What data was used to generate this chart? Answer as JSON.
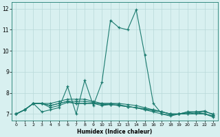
{
  "x": [
    0,
    1,
    2,
    3,
    4,
    5,
    6,
    7,
    8,
    9,
    10,
    11,
    12,
    13,
    14,
    15,
    16,
    17,
    18,
    19,
    20,
    21,
    22,
    23
  ],
  "line1": [
    7.0,
    7.2,
    7.5,
    7.1,
    7.2,
    7.3,
    8.3,
    7.0,
    8.6,
    7.4,
    8.5,
    11.45,
    11.1,
    11.0,
    11.95,
    9.8,
    7.5,
    7.0,
    6.9,
    7.0,
    7.1,
    7.1,
    7.0,
    6.85
  ],
  "line2": [
    7.0,
    7.2,
    7.5,
    7.5,
    7.3,
    7.4,
    7.55,
    7.5,
    7.5,
    7.5,
    7.4,
    7.45,
    7.4,
    7.35,
    7.3,
    7.2,
    7.1,
    7.0,
    6.95,
    7.0,
    7.1,
    7.1,
    7.15,
    6.95
  ],
  "line3": [
    7.0,
    7.2,
    7.5,
    7.5,
    7.4,
    7.5,
    7.6,
    7.5,
    7.5,
    7.5,
    7.5,
    7.5,
    7.5,
    7.45,
    7.4,
    7.3,
    7.2,
    7.1,
    7.0,
    7.0,
    7.05,
    7.1,
    7.1,
    7.0
  ],
  "line4": [
    7.0,
    7.2,
    7.5,
    7.5,
    7.4,
    7.5,
    7.6,
    7.6,
    7.6,
    7.55,
    7.45,
    7.45,
    7.4,
    7.35,
    7.3,
    7.25,
    7.15,
    7.1,
    7.0,
    7.0,
    7.0,
    7.05,
    7.0,
    6.9
  ],
  "line5": [
    7.0,
    7.2,
    7.5,
    7.5,
    7.5,
    7.6,
    7.7,
    7.7,
    7.7,
    7.6,
    7.5,
    7.5,
    7.45,
    7.35,
    7.3,
    7.2,
    7.2,
    7.1,
    7.0,
    7.0,
    7.0,
    7.0,
    7.0,
    6.9
  ],
  "line_color": "#1a7a6e",
  "bg_color": "#d8f0f0",
  "grid_color": "#b8d8d8",
  "xlim": [
    -0.5,
    23.5
  ],
  "ylim": [
    6.7,
    12.3
  ],
  "yticks": [
    7,
    8,
    9,
    10,
    11,
    12
  ],
  "xticks": [
    0,
    1,
    2,
    3,
    4,
    5,
    6,
    7,
    8,
    9,
    10,
    11,
    12,
    13,
    14,
    15,
    16,
    17,
    18,
    19,
    20,
    21,
    22,
    23
  ],
  "xlabel": "Humidex (Indice chaleur)"
}
